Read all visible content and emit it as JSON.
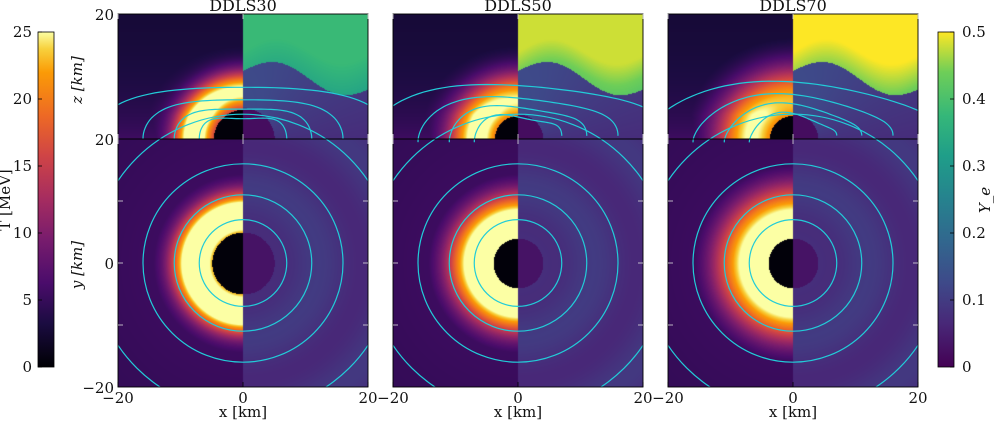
{
  "chart_data": {
    "type": "heatmap",
    "panels": [
      {
        "title": "DDLS30",
        "bh_radius": 5.0,
        "hot_peak": 24,
        "hot_radius": 8.0,
        "hot_width": 3.0,
        "ye_top": 0.38
      },
      {
        "title": "DDLS50",
        "bh_radius": 4.0,
        "hot_peak": 21,
        "hot_radius": 6.8,
        "hot_width": 4.0,
        "ye_top": 0.48
      },
      {
        "title": "DDLS70",
        "bh_radius": 4.0,
        "hot_peak": 19,
        "hot_radius": 7.0,
        "hot_width": 5.0,
        "ye_top": 0.5
      }
    ],
    "x_label": "x [km]",
    "x_ticks": [
      {
        "label": "−20",
        "value": -20
      },
      {
        "label": "0",
        "value": 0
      },
      {
        "label": "20",
        "value": 20
      }
    ],
    "top_y_label": "z [km]",
    "top_y_ticks": [
      {
        "label": "20",
        "value": 20
      }
    ],
    "bottom_y_label": "y [km]",
    "bottom_y_ticks": [
      {
        "label": "20",
        "value": 20
      },
      {
        "label": "0",
        "value": 0
      },
      {
        "label": "−20",
        "value": -20
      }
    ],
    "contour_radii_km": [
      7,
      11,
      16,
      24
    ],
    "colorbar_T": {
      "label": "T [MeV]",
      "range": [
        0,
        25
      ],
      "ticks": [
        {
          "label": "0",
          "value": 0
        },
        {
          "label": "5",
          "value": 5
        },
        {
          "label": "10",
          "value": 10
        },
        {
          "label": "15",
          "value": 15
        },
        {
          "label": "20",
          "value": 20
        },
        {
          "label": "25",
          "value": 25
        }
      ],
      "colormap": "inferno"
    },
    "colorbar_Ye": {
      "label": "Y_e",
      "range": [
        0,
        0.5
      ],
      "ticks": [
        {
          "label": "0",
          "value": 0
        },
        {
          "label": "0.1",
          "value": 0.1
        },
        {
          "label": "0.2",
          "value": 0.2
        },
        {
          "label": "0.3",
          "value": 0.3
        },
        {
          "label": "0.4",
          "value": 0.4
        },
        {
          "label": "0.5",
          "value": 0.5
        }
      ],
      "colormap": "viridis"
    },
    "contour_color": "#22ccd8"
  }
}
